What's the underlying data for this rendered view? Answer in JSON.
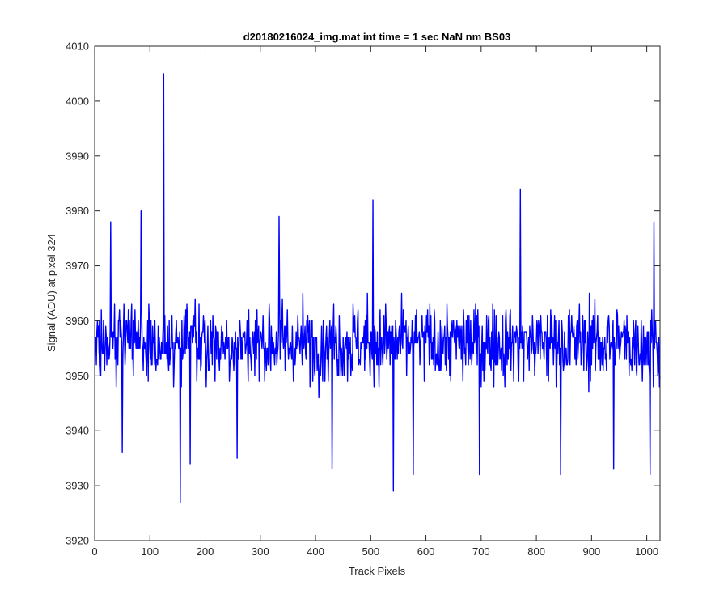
{
  "chart_data": {
    "type": "line",
    "title": "d20180216024_img.mat int time = 1 sec  NaN nm BS03",
    "xlabel": "Track Pixels",
    "ylabel": "Signal (ADU) at pixel 324",
    "xlim": [
      0,
      1024
    ],
    "ylim": [
      3920,
      4010
    ],
    "xticks": [
      0,
      100,
      200,
      300,
      400,
      500,
      600,
      700,
      800,
      900,
      1000
    ],
    "xtick_labels": [
      "0",
      "100",
      "200",
      "300",
      "400",
      "500",
      "600",
      "700",
      "800",
      "900",
      "1000"
    ],
    "yticks": [
      3920,
      3930,
      3940,
      3950,
      3960,
      3970,
      3980,
      3990,
      4000,
      4010
    ],
    "ytick_labels": [
      "3920",
      "3930",
      "3940",
      "3950",
      "3960",
      "3970",
      "3980",
      "3990",
      "4000",
      "4010"
    ],
    "grid": false,
    "series": [
      {
        "color": "#0000ff",
        "n_points": 1024,
        "x_start": 1,
        "baseline": 3956,
        "noise_amplitude": 8,
        "notable_points": [
          {
            "x": 125,
            "y": 4005
          },
          {
            "x": 155,
            "y": 3927
          },
          {
            "x": 541,
            "y": 3929
          },
          {
            "x": 771,
            "y": 3984
          },
          {
            "x": 504,
            "y": 3982
          },
          {
            "x": 84,
            "y": 3980
          },
          {
            "x": 29,
            "y": 3978
          },
          {
            "x": 1013,
            "y": 3978
          },
          {
            "x": 334,
            "y": 3979
          },
          {
            "x": 50,
            "y": 3936
          },
          {
            "x": 173,
            "y": 3934
          },
          {
            "x": 430,
            "y": 3933
          },
          {
            "x": 577,
            "y": 3932
          },
          {
            "x": 697,
            "y": 3932
          },
          {
            "x": 844,
            "y": 3932
          },
          {
            "x": 1006,
            "y": 3932
          },
          {
            "x": 940,
            "y": 3933
          },
          {
            "x": 258,
            "y": 3935
          }
        ]
      }
    ]
  }
}
